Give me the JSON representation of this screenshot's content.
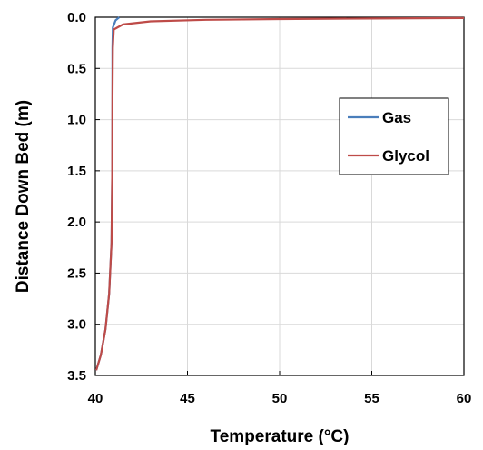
{
  "chart_data": {
    "type": "line",
    "xlabel": "Temperature (°C)",
    "ylabel": "Distance Down Bed (m)",
    "xlim": [
      40,
      60
    ],
    "ylim": [
      0.0,
      3.5
    ],
    "y_inverted": true,
    "x_ticks": [
      "40",
      "45",
      "50",
      "55",
      "60"
    ],
    "y_ticks": [
      "0.0",
      "0.5",
      "1.0",
      "1.5",
      "2.0",
      "2.5",
      "3.0",
      "3.5"
    ],
    "grid": true,
    "legend_position": "right",
    "series": [
      {
        "name": "Gas",
        "color": "#4a7ebb",
        "points": [
          [
            40.05,
            3.45
          ],
          [
            40.3,
            3.3
          ],
          [
            40.55,
            3.05
          ],
          [
            40.75,
            2.7
          ],
          [
            40.88,
            2.2
          ],
          [
            40.92,
            1.5
          ],
          [
            40.93,
            0.8
          ],
          [
            40.93,
            0.3
          ],
          [
            40.95,
            0.1
          ],
          [
            41.1,
            0.03
          ],
          [
            41.3,
            0.0
          ]
        ]
      },
      {
        "name": "Glycol",
        "color": "#be4b48",
        "points": [
          [
            40.05,
            3.45
          ],
          [
            40.3,
            3.3
          ],
          [
            40.55,
            3.05
          ],
          [
            40.75,
            2.7
          ],
          [
            40.88,
            2.2
          ],
          [
            40.92,
            1.5
          ],
          [
            40.93,
            0.8
          ],
          [
            40.95,
            0.3
          ],
          [
            41.0,
            0.12
          ],
          [
            41.5,
            0.07
          ],
          [
            43,
            0.04
          ],
          [
            46,
            0.025
          ],
          [
            50,
            0.018
          ],
          [
            55,
            0.012
          ],
          [
            60,
            0.008
          ]
        ]
      }
    ]
  }
}
